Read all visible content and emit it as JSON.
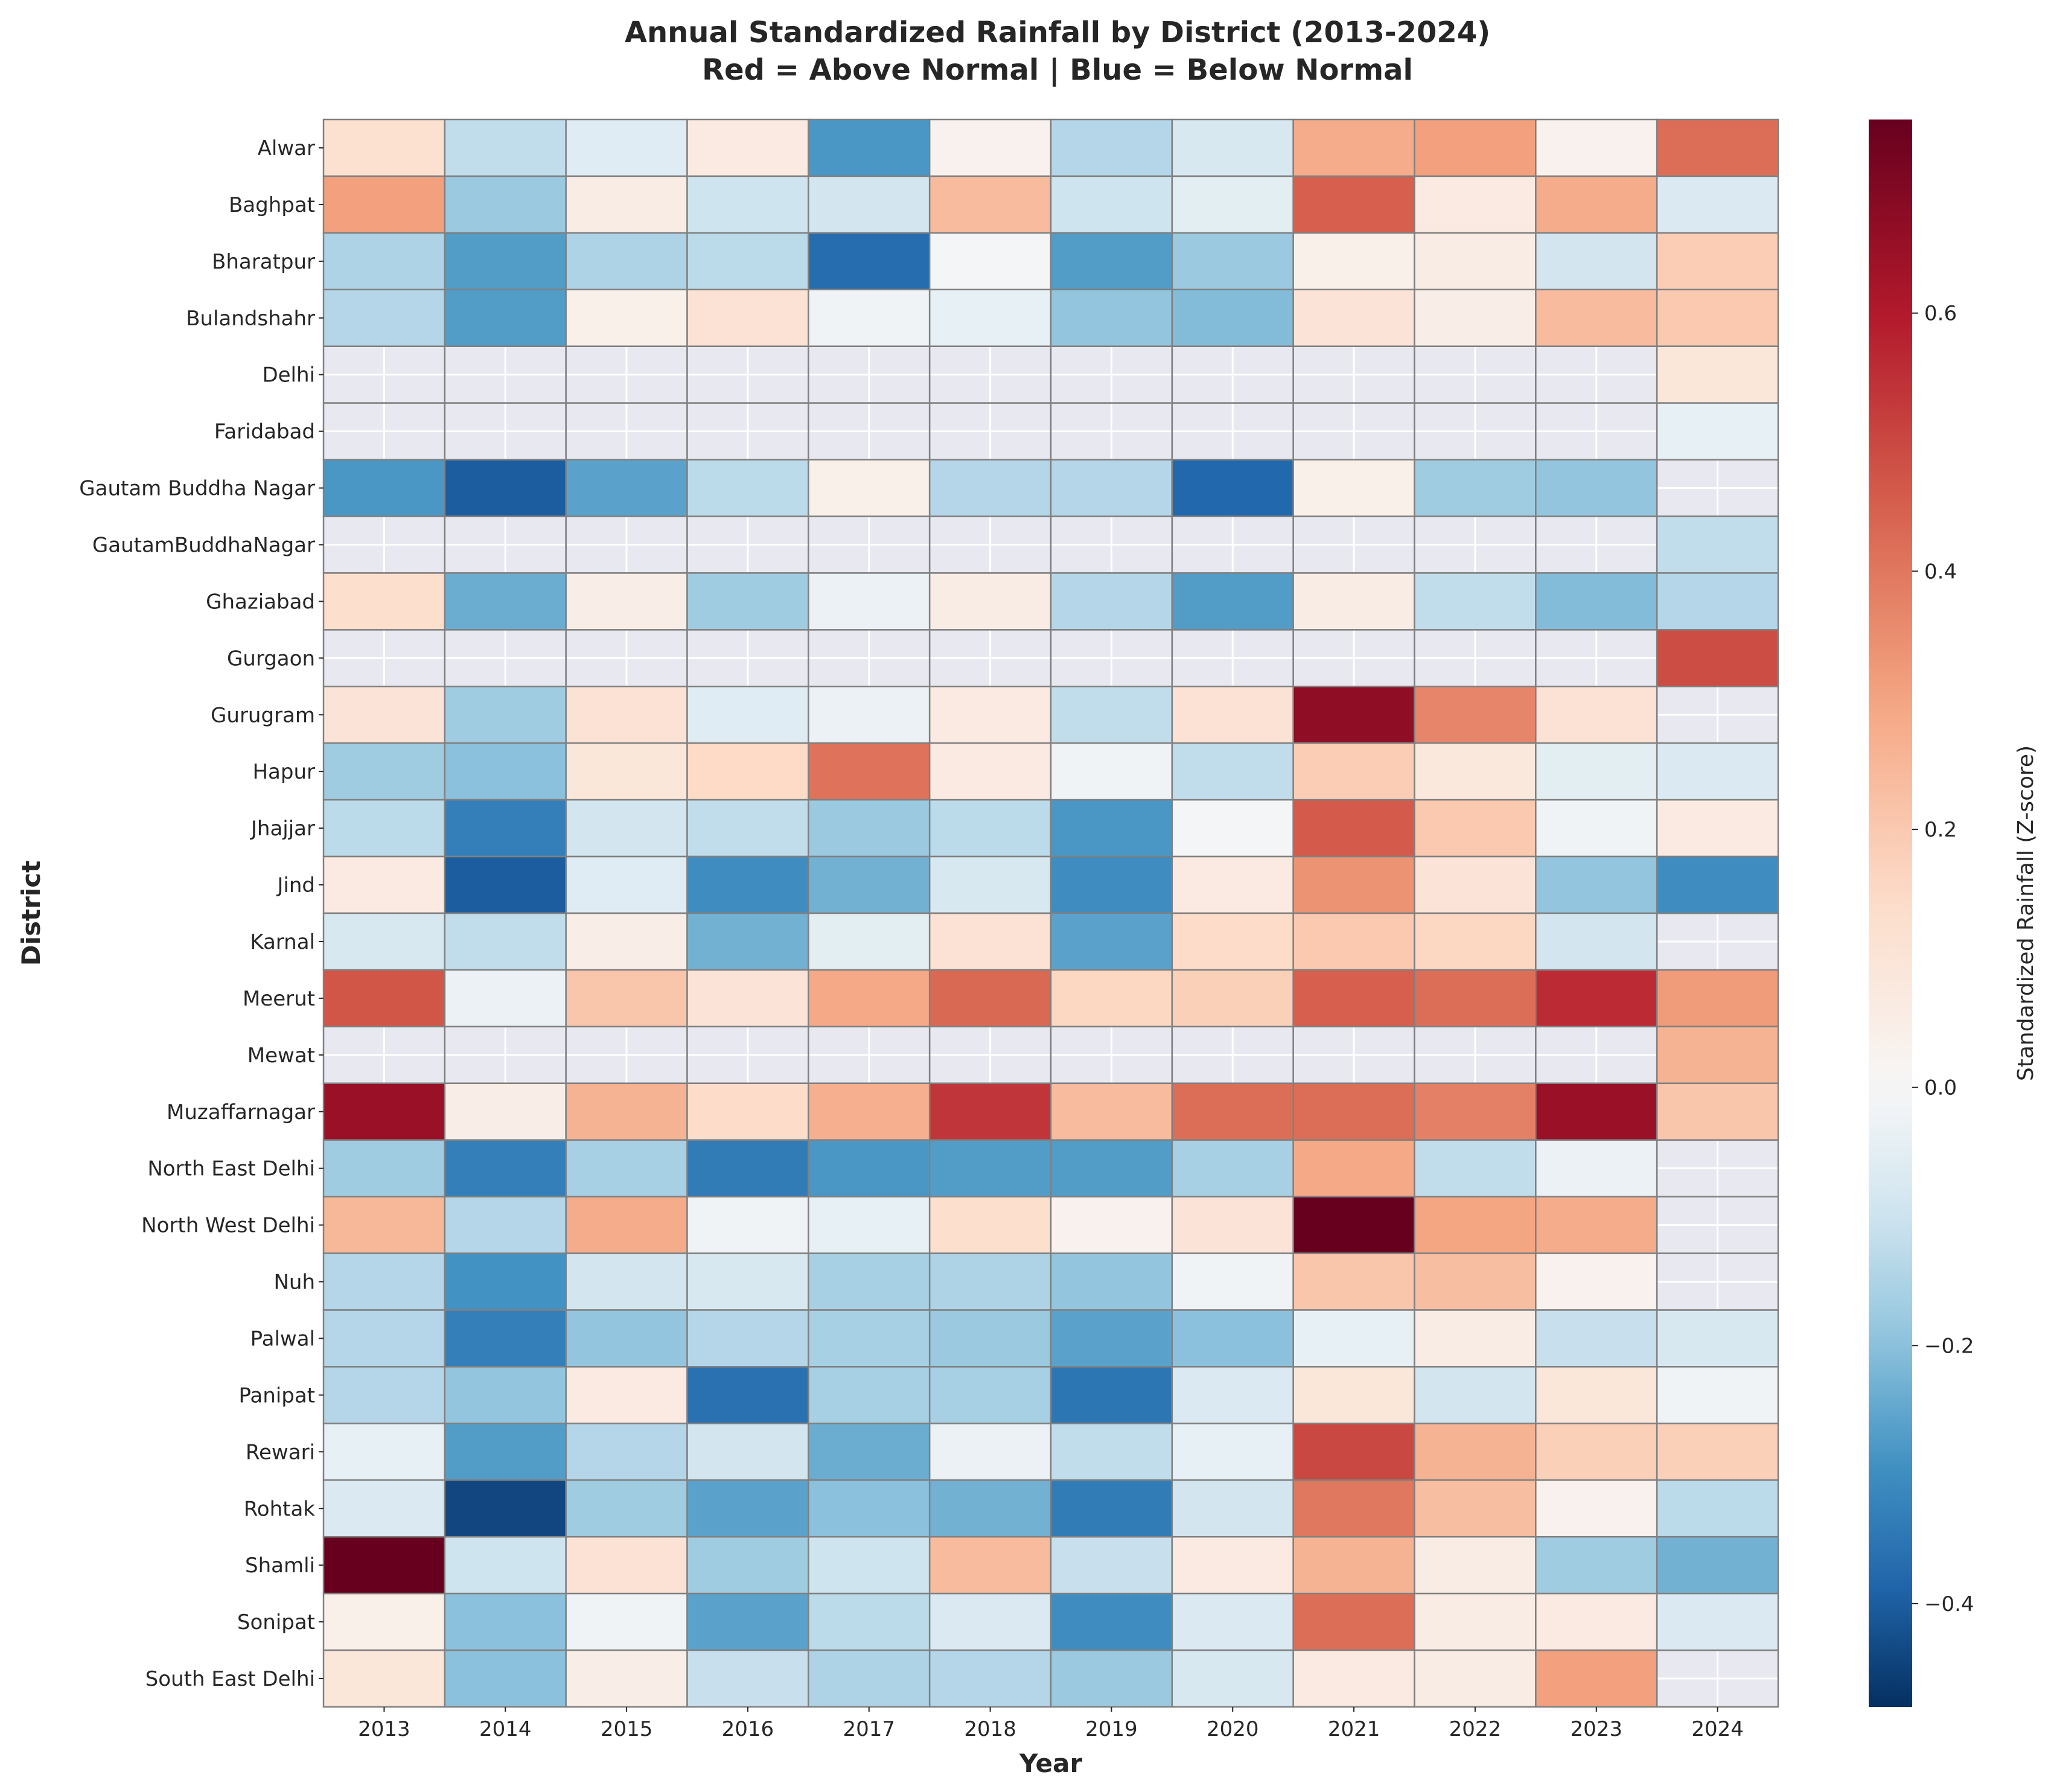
{
  "chart_data": {
    "type": "heatmap",
    "title": "Annual Standardized Rainfall by District (2013-2024)",
    "subtitle": "Red = Above Normal | Blue = Below Normal",
    "xlabel": "Year",
    "ylabel": "District",
    "colorbar_label": "Standardized Rainfall (Z-score)",
    "colormap": "RdBu_r",
    "vmin": -0.48,
    "vmax": 0.75,
    "colorbar_ticks": [
      -0.4,
      -0.2,
      0.0,
      0.2,
      0.4,
      0.6
    ],
    "colorbar_tick_labels": [
      "−0.4",
      "−0.2",
      "0.0",
      "0.2",
      "0.4",
      "0.6"
    ],
    "missing_color": "#e8e8f0",
    "x": [
      "2013",
      "2014",
      "2015",
      "2016",
      "2017",
      "2018",
      "2019",
      "2020",
      "2021",
      "2022",
      "2023",
      "2024"
    ],
    "y": [
      "Alwar",
      "Baghpat",
      "Bharatpur",
      "Bulandshahr",
      "Delhi",
      "Faridabad",
      "Gautam Buddha Nagar",
      "GautamBuddhaNagar",
      "Ghaziabad",
      "Gurgaon",
      "Gurugram",
      "Hapur",
      "Jhajjar",
      "Jind",
      "Karnal",
      "Meerut",
      "Mewat",
      "Muzaffarnagar",
      "North East Delhi",
      "North West Delhi",
      "Nuh",
      "Palwal",
      "Panipat",
      "Rewari",
      "Rohtak",
      "Shamli",
      "Sonipat",
      "South East Delhi"
    ],
    "values": [
      [
        0.12,
        -0.12,
        -0.06,
        0.07,
        -0.28,
        0.03,
        -0.14,
        -0.08,
        0.28,
        0.31,
        0.03,
        0.42
      ],
      [
        0.31,
        -0.18,
        0.06,
        -0.1,
        -0.09,
        0.24,
        -0.1,
        -0.05,
        0.45,
        0.07,
        0.28,
        -0.07
      ],
      [
        -0.15,
        -0.27,
        -0.15,
        -0.13,
        -0.37,
        -0.01,
        -0.27,
        -0.18,
        0.04,
        0.06,
        -0.09,
        0.19
      ],
      [
        -0.14,
        -0.27,
        0.04,
        0.11,
        -0.02,
        -0.04,
        -0.19,
        -0.21,
        0.1,
        0.05,
        0.24,
        0.2
      ],
      [
        null,
        null,
        null,
        null,
        null,
        null,
        null,
        null,
        null,
        null,
        null,
        0.09
      ],
      [
        null,
        null,
        null,
        null,
        null,
        null,
        null,
        null,
        null,
        null,
        null,
        -0.04
      ],
      [
        -0.28,
        -0.4,
        -0.26,
        -0.13,
        0.04,
        -0.14,
        -0.14,
        -0.38,
        0.04,
        -0.17,
        -0.19,
        null
      ],
      [
        null,
        null,
        null,
        null,
        null,
        null,
        null,
        null,
        null,
        null,
        null,
        -0.12
      ],
      [
        0.13,
        -0.24,
        0.05,
        -0.17,
        -0.03,
        0.06,
        -0.14,
        -0.27,
        0.06,
        -0.12,
        -0.21,
        -0.14
      ],
      [
        null,
        null,
        null,
        null,
        null,
        null,
        null,
        null,
        null,
        null,
        null,
        0.49
      ],
      [
        0.1,
        -0.17,
        0.11,
        -0.06,
        -0.03,
        0.07,
        -0.12,
        0.11,
        0.67,
        0.37,
        0.11,
        null
      ],
      [
        -0.17,
        -0.2,
        0.09,
        0.15,
        0.41,
        0.07,
        -0.02,
        -0.12,
        0.19,
        0.08,
        -0.05,
        -0.07
      ],
      [
        -0.13,
        -0.33,
        -0.09,
        -0.12,
        -0.18,
        -0.13,
        -0.28,
        -0.01,
        0.46,
        0.2,
        -0.02,
        0.07
      ],
      [
        0.07,
        -0.4,
        -0.06,
        -0.3,
        -0.23,
        -0.08,
        -0.3,
        0.07,
        0.34,
        0.1,
        -0.19,
        -0.3
      ],
      [
        -0.08,
        -0.12,
        0.05,
        -0.23,
        -0.05,
        0.11,
        -0.26,
        0.14,
        0.2,
        0.16,
        -0.09,
        null
      ],
      [
        0.47,
        -0.03,
        0.21,
        0.1,
        0.29,
        0.43,
        0.16,
        0.18,
        0.45,
        0.42,
        0.56,
        0.32
      ],
      [
        null,
        null,
        null,
        null,
        null,
        null,
        null,
        null,
        null,
        null,
        null,
        0.26
      ],
      [
        0.65,
        0.05,
        0.26,
        0.14,
        0.27,
        0.54,
        0.24,
        0.42,
        0.42,
        0.38,
        0.65,
        0.21
      ],
      [
        -0.17,
        -0.33,
        -0.16,
        -0.34,
        -0.28,
        -0.27,
        -0.27,
        -0.16,
        0.29,
        -0.12,
        -0.03,
        null
      ],
      [
        0.25,
        -0.14,
        0.28,
        -0.02,
        -0.04,
        0.13,
        0.03,
        0.1,
        0.75,
        0.3,
        0.28,
        null
      ],
      [
        -0.14,
        -0.29,
        -0.09,
        -0.08,
        -0.16,
        -0.15,
        -0.19,
        -0.02,
        0.21,
        0.23,
        0.03,
        null
      ],
      [
        -0.14,
        -0.33,
        -0.19,
        -0.14,
        -0.16,
        -0.18,
        -0.26,
        -0.2,
        -0.04,
        0.06,
        -0.11,
        -0.08
      ],
      [
        -0.14,
        -0.19,
        0.07,
        -0.36,
        -0.16,
        -0.16,
        -0.35,
        -0.07,
        0.09,
        -0.09,
        0.09,
        -0.02
      ],
      [
        -0.04,
        -0.27,
        -0.14,
        -0.09,
        -0.24,
        -0.03,
        -0.12,
        -0.04,
        0.5,
        0.26,
        0.18,
        0.18
      ],
      [
        -0.07,
        -0.44,
        -0.17,
        -0.26,
        -0.2,
        -0.23,
        -0.34,
        -0.09,
        0.4,
        0.23,
        0.03,
        -0.13
      ],
      [
        0.75,
        -0.1,
        0.11,
        -0.17,
        -0.1,
        0.24,
        -0.11,
        0.07,
        0.26,
        0.06,
        -0.17,
        -0.23
      ],
      [
        0.04,
        -0.2,
        -0.02,
        -0.26,
        -0.13,
        -0.07,
        -0.3,
        -0.07,
        0.42,
        0.06,
        0.07,
        -0.07
      ],
      [
        0.09,
        -0.2,
        0.05,
        -0.11,
        -0.15,
        -0.14,
        -0.18,
        -0.08,
        0.07,
        0.06,
        0.31,
        null
      ]
    ]
  }
}
